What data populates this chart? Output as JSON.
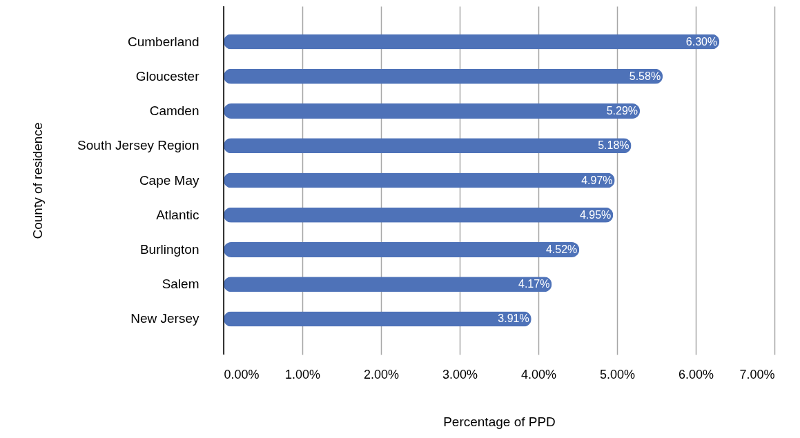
{
  "chart_data": {
    "type": "bar",
    "orientation": "horizontal",
    "categories": [
      "Cumberland",
      "Gloucester",
      "Camden",
      "South Jersey Region",
      "Cape May",
      "Atlantic",
      "Burlington",
      "Salem",
      "New Jersey"
    ],
    "values": [
      6.3,
      5.58,
      5.29,
      5.18,
      4.97,
      4.95,
      4.52,
      4.17,
      3.91
    ],
    "value_labels": [
      "6.30%",
      "5.58%",
      "5.29%",
      "5.18%",
      "4.97%",
      "4.95%",
      "4.52%",
      "4.17%",
      "3.91%"
    ],
    "color": "#4e72b8",
    "xlabel": "Percentage of PPD",
    "ylabel": "County of residence",
    "xlim": [
      0,
      7
    ],
    "xticks": [
      {
        "value": 0,
        "label": "0.00%"
      },
      {
        "value": 1,
        "label": "1.00%"
      },
      {
        "value": 2,
        "label": "2.00%"
      },
      {
        "value": 3,
        "label": "3.00%"
      },
      {
        "value": 4,
        "label": "4.00%"
      },
      {
        "value": 5,
        "label": "5.00%"
      },
      {
        "value": 6,
        "label": "6.00%"
      },
      {
        "value": 7,
        "label": "7.00%"
      }
    ],
    "grid": "x"
  }
}
